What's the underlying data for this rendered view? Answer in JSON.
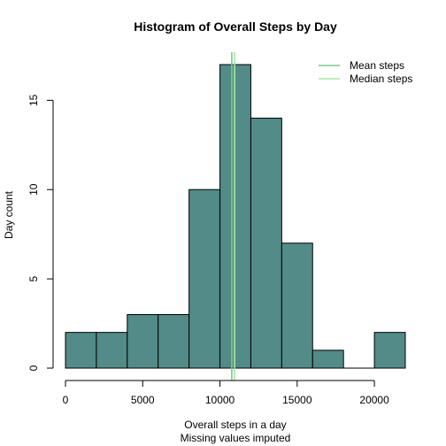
{
  "chart_data": {
    "type": "histogram",
    "title": "Histogram of Overall Steps by Day",
    "xlabel": "Overall steps in a day",
    "xlabel_sub": "Missing values imputed",
    "ylabel": "Day count",
    "bins": [
      {
        "from": 0,
        "to": 2000,
        "count": 2
      },
      {
        "from": 2000,
        "to": 4000,
        "count": 2
      },
      {
        "from": 4000,
        "to": 6000,
        "count": 3
      },
      {
        "from": 6000,
        "to": 8000,
        "count": 3
      },
      {
        "from": 8000,
        "to": 10000,
        "count": 10
      },
      {
        "from": 10000,
        "to": 12000,
        "count": 17
      },
      {
        "from": 12000,
        "to": 14000,
        "count": 14
      },
      {
        "from": 14000,
        "to": 16000,
        "count": 7
      },
      {
        "from": 16000,
        "to": 18000,
        "count": 1
      },
      {
        "from": 18000,
        "to": 20000,
        "count": 0
      },
      {
        "from": 20000,
        "to": 22000,
        "count": 2
      }
    ],
    "xlim": [
      0,
      22000
    ],
    "ylim": [
      0,
      17
    ],
    "x_ticks": [
      0,
      5000,
      10000,
      15000,
      20000
    ],
    "y_ticks": [
      0,
      5,
      10,
      15
    ],
    "bar_color": "#528b87",
    "reference_lines": [
      {
        "name": "Mean steps",
        "value": 10766,
        "color": "#7bc98f"
      },
      {
        "name": "Median steps",
        "value": 10950,
        "color": "#a9e8a0"
      }
    ],
    "legend_position": "top-right",
    "grid": false
  }
}
